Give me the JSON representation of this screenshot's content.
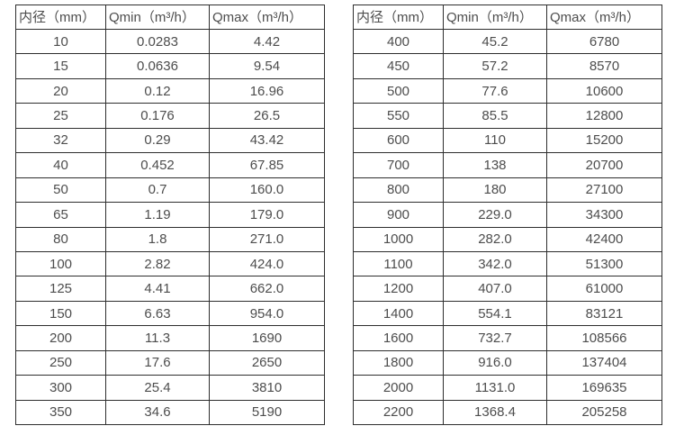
{
  "colors": {
    "background": "#ffffff",
    "border": "#2e2e2e",
    "text": "#4d4d4d"
  },
  "tables": [
    {
      "name": "flow-rate-table-small-diameters",
      "headers": [
        "内径（mm）",
        "Qmin（m³/h）",
        "Qmax（m³/h）"
      ],
      "rows": [
        [
          "10",
          "0.0283",
          "4.42"
        ],
        [
          "15",
          "0.0636",
          "9.54"
        ],
        [
          "20",
          "0.12",
          "16.96"
        ],
        [
          "25",
          "0.176",
          "26.5"
        ],
        [
          "32",
          "0.29",
          "43.42"
        ],
        [
          "40",
          "0.452",
          "67.85"
        ],
        [
          "50",
          "0.7",
          "160.0"
        ],
        [
          "65",
          "1.19",
          "179.0"
        ],
        [
          "80",
          "1.8",
          "271.0"
        ],
        [
          "100",
          "2.82",
          "424.0"
        ],
        [
          "125",
          "4.41",
          "662.0"
        ],
        [
          "150",
          "6.63",
          "954.0"
        ],
        [
          "200",
          "11.3",
          "1690"
        ],
        [
          "250",
          "17.6",
          "2650"
        ],
        [
          "300",
          "25.4",
          "3810"
        ],
        [
          "350",
          "34.6",
          "5190"
        ]
      ]
    },
    {
      "name": "flow-rate-table-large-diameters",
      "headers": [
        "内径（mm）",
        "Qmin（m³/h）",
        "Qmax（m³/h）"
      ],
      "rows": [
        [
          "400",
          "45.2",
          "6780"
        ],
        [
          "450",
          "57.2",
          "8570"
        ],
        [
          "500",
          "77.6",
          "10600"
        ],
        [
          "550",
          "85.5",
          "12800"
        ],
        [
          "600",
          "110",
          "15200"
        ],
        [
          "700",
          "138",
          "20700"
        ],
        [
          "800",
          "180",
          "27100"
        ],
        [
          "900",
          "229.0",
          "34300"
        ],
        [
          "1000",
          "282.0",
          "42400"
        ],
        [
          "1100",
          "342.0",
          "51300"
        ],
        [
          "1200",
          "407.0",
          "61000"
        ],
        [
          "1400",
          "554.1",
          "83121"
        ],
        [
          "1600",
          "732.7",
          "108566"
        ],
        [
          "1800",
          "916.0",
          "137404"
        ],
        [
          "2000",
          "1131.0",
          "169635"
        ],
        [
          "2200",
          "1368.4",
          "205258"
        ]
      ]
    }
  ]
}
